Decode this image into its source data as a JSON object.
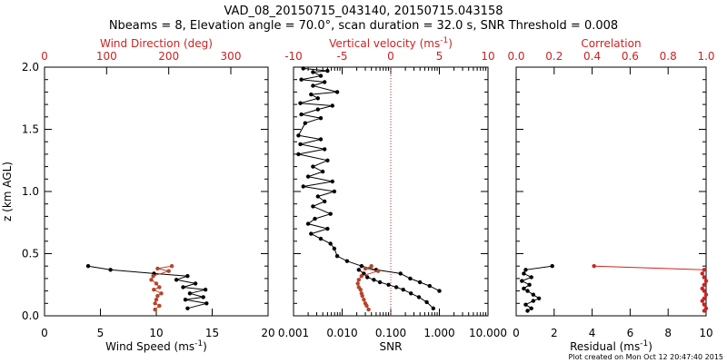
{
  "title_line1": "VAD_08_20150715_043140, 20150715.043158",
  "title_line2": "Nbeams = 8, Elevation angle = 70.0°, scan duration = 32.0 s, SNR Threshold = 0.008",
  "y_axis_label": "z (km AGL)",
  "footer": "Plot created on Mon Oct 12 20:47:40 2015",
  "colors": {
    "black": "#000000",
    "red": "#cc2222",
    "brown": "#b5452a"
  },
  "chart_data": [
    {
      "type": "line",
      "panel": "wind",
      "bottom_axis": {
        "label": "Wind Speed (ms",
        "label_sup": "-1",
        "label_end": ")",
        "range": [
          0,
          20
        ],
        "ticks": [
          "0",
          "5",
          "10",
          "15",
          "20"
        ]
      },
      "top_axis": {
        "label": "Wind Direction (deg)",
        "range": [
          0,
          360
        ],
        "ticks": [
          "0",
          "100",
          "200",
          "300"
        ]
      },
      "y_range": [
        0,
        2.0
      ],
      "y_ticks": [
        "0.0",
        "0.5",
        "1.0",
        "1.5",
        "2.0"
      ],
      "series": [
        {
          "axis": "bottom",
          "color": "black",
          "x": [
            3.9,
            5.9,
            9.8,
            12.8,
            11.8,
            13.5,
            12.4,
            14.4,
            13.0,
            14.2,
            12.6,
            14.5,
            12.8
          ],
          "y": [
            0.4,
            0.37,
            0.34,
            0.32,
            0.29,
            0.26,
            0.23,
            0.21,
            0.18,
            0.15,
            0.13,
            0.1,
            0.06
          ]
        },
        {
          "axis": "top",
          "color": "brown",
          "x": [
            205,
            182,
            200,
            175,
            172,
            180,
            185,
            176,
            188,
            182,
            180,
            178,
            185,
            178
          ],
          "y": [
            0.4,
            0.38,
            0.36,
            0.32,
            0.29,
            0.26,
            0.23,
            0.21,
            0.18,
            0.16,
            0.13,
            0.1,
            0.08,
            0.05
          ]
        }
      ]
    },
    {
      "type": "line",
      "panel": "snr",
      "bottom_axis": {
        "label": "SNR",
        "scale": "log",
        "range": [
          0.001,
          10
        ],
        "ticks": [
          "0.001",
          "0.010",
          "0.100",
          "1.000",
          "10.000"
        ]
      },
      "top_axis": {
        "label": "Vertical velocity (ms",
        "label_sup": "-1",
        "label_end": ")",
        "range": [
          -10,
          10
        ],
        "ticks": [
          "-10",
          "-5",
          "0",
          "5",
          "10"
        ],
        "reference_line": 0
      },
      "y_range": [
        0,
        2.0
      ],
      "y_ticks": [],
      "series": [
        {
          "axis": "top",
          "color": "black",
          "x": [
            -9.0,
            -6.5,
            -8.0,
            -7.2,
            -9.2,
            -6.8,
            -8.0,
            -5.5,
            -8.2,
            -7.5,
            -9.3,
            -6.0,
            -7.5,
            -9.2,
            -7.2,
            -8.8,
            -9.5,
            -7.2,
            -9.3,
            -6.8,
            -9.5,
            -6.5,
            -8.0,
            -7.0,
            -8.5,
            -6.0,
            -9.0,
            -5.8,
            -7.5,
            -6.8,
            -8.0,
            -6.2,
            -7.8,
            -8.5,
            -6.5,
            -8.2,
            -7.2,
            -6.2,
            -5.8,
            -5.5,
            -4.5,
            -3.0,
            -1.5,
            1.0,
            2.0,
            3.0,
            4.0,
            5.0
          ],
          "y": [
            1.99,
            1.97,
            1.96,
            1.93,
            1.9,
            1.88,
            1.85,
            1.8,
            1.78,
            1.75,
            1.71,
            1.69,
            1.66,
            1.62,
            1.59,
            1.55,
            1.45,
            1.42,
            1.38,
            1.34,
            1.3,
            1.25,
            1.2,
            1.16,
            1.12,
            1.08,
            1.04,
            1.0,
            0.96,
            0.92,
            0.88,
            0.82,
            0.78,
            0.74,
            0.7,
            0.66,
            0.62,
            0.58,
            0.54,
            0.48,
            0.44,
            0.4,
            0.37,
            0.34,
            0.3,
            0.27,
            0.24,
            0.2
          ]
        },
        {
          "axis": "bottom",
          "color": "black",
          "x": [
            0.022,
            0.028,
            0.033,
            0.045,
            0.06,
            0.09,
            0.13,
            0.18,
            0.26,
            0.38,
            0.55,
            0.75
          ],
          "y": [
            0.37,
            0.34,
            0.31,
            0.29,
            0.27,
            0.25,
            0.23,
            0.21,
            0.18,
            0.15,
            0.11,
            0.06
          ]
        },
        {
          "axis": "bottom",
          "color": "brown",
          "x": [
            0.04,
            0.03,
            0.055,
            0.025,
            0.022,
            0.021,
            0.022,
            0.024,
            0.025,
            0.026,
            0.028,
            0.03,
            0.032,
            0.035
          ],
          "y": [
            0.4,
            0.38,
            0.36,
            0.32,
            0.29,
            0.26,
            0.23,
            0.21,
            0.18,
            0.16,
            0.13,
            0.1,
            0.08,
            0.05
          ]
        }
      ]
    },
    {
      "type": "line",
      "panel": "residual",
      "bottom_axis": {
        "label": "Residual (ms",
        "label_sup": "-1",
        "label_end": ")",
        "range": [
          0,
          10
        ],
        "ticks": [
          "0",
          "2",
          "4",
          "6",
          "8",
          "10"
        ]
      },
      "top_axis": {
        "label": "Correlation",
        "range": [
          0,
          1.0
        ],
        "ticks": [
          "0.0",
          "0.2",
          "0.4",
          "0.6",
          "0.8",
          "1.0"
        ]
      },
      "y_range": [
        0,
        2.0
      ],
      "y_ticks": [],
      "series": [
        {
          "axis": "bottom",
          "color": "black",
          "x": [
            1.9,
            0.5,
            0.4,
            0.8,
            0.3,
            0.7,
            0.4,
            0.6,
            0.9,
            1.2,
            0.9,
            0.5,
            0.8,
            0.6
          ],
          "y": [
            0.4,
            0.37,
            0.34,
            0.31,
            0.28,
            0.25,
            0.22,
            0.2,
            0.17,
            0.14,
            0.12,
            0.09,
            0.06,
            0.04
          ]
        },
        {
          "axis": "top",
          "color": "red",
          "x": [
            0.41,
            0.99,
            0.98,
            0.99,
            1.0,
            0.99,
            0.98,
            0.99,
            1.0,
            0.99,
            0.98,
            0.99,
            1.0,
            0.99
          ],
          "y": [
            0.4,
            0.37,
            0.34,
            0.31,
            0.28,
            0.25,
            0.22,
            0.2,
            0.17,
            0.14,
            0.12,
            0.09,
            0.06,
            0.04
          ]
        }
      ]
    }
  ]
}
